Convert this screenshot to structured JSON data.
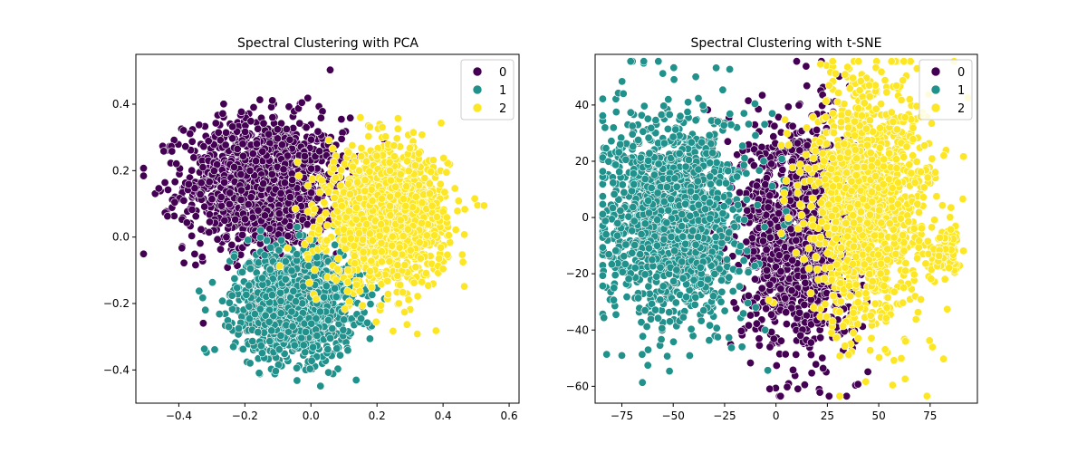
{
  "chart_data": [
    {
      "type": "scatter",
      "title": "Spectral Clustering with PCA",
      "xlim": [
        -0.53,
        0.63
      ],
      "ylim": [
        -0.5,
        0.55
      ],
      "xticks": [
        -0.4,
        -0.2,
        0.0,
        0.2,
        0.4,
        0.6
      ],
      "xtick_labels": [
        "−0.4",
        "−0.2",
        "0.0",
        "0.2",
        "0.4",
        "0.6"
      ],
      "yticks": [
        -0.4,
        -0.2,
        0.0,
        0.2,
        0.4
      ],
      "yticks_labels": [
        "−0.4",
        "−0.2",
        "0.0",
        "0.2",
        "0.4"
      ],
      "legend": {
        "position": "top-right",
        "entries": [
          "0",
          "1",
          "2"
        ]
      },
      "colors": [
        "#440154",
        "#21918c",
        "#fde725"
      ],
      "series": [
        {
          "name": "0",
          "center": [
            -0.14,
            0.16
          ],
          "spread": [
            0.12,
            0.1
          ],
          "count": 1400
        },
        {
          "name": "1",
          "center": [
            -0.05,
            -0.2
          ],
          "spread": [
            0.09,
            0.08
          ],
          "count": 1400
        },
        {
          "name": "2",
          "center": [
            0.23,
            0.06
          ],
          "spread": [
            0.09,
            0.1
          ],
          "count": 1400
        }
      ]
    },
    {
      "type": "scatter",
      "title": "Spectral Clustering with t-SNE",
      "xlim": [
        -88,
        98
      ],
      "ylim": [
        -66,
        58
      ],
      "xticks": [
        -75,
        -50,
        -25,
        0,
        25,
        50,
        75
      ],
      "xtick_labels": [
        "−75",
        "−50",
        "−25",
        "0",
        "25",
        "50",
        "75"
      ],
      "yticks": [
        -60,
        -40,
        -20,
        0,
        20,
        40
      ],
      "yticks_labels": [
        "−60",
        "−40",
        "−20",
        "0",
        "20",
        "40"
      ],
      "legend": {
        "position": "top-right",
        "entries": [
          "0",
          "1",
          "2"
        ]
      },
      "colors": [
        "#440154",
        "#21918c",
        "#fde725"
      ],
      "series": [
        {
          "name": "0",
          "center": [
            12,
            -5
          ],
          "spread": [
            14,
            20
          ],
          "count": 1400
        },
        {
          "name": "1",
          "center": [
            -50,
            0
          ],
          "spread": [
            17,
            19
          ],
          "count": 1400
        },
        {
          "name": "2",
          "center": [
            45,
            5
          ],
          "spread": [
            15,
            22
          ],
          "count": 1300
        }
      ]
    }
  ]
}
